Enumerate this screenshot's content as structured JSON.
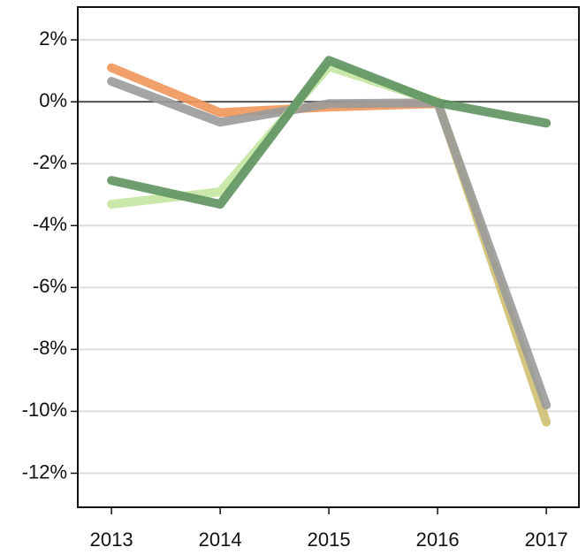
{
  "chart_data": {
    "type": "line",
    "x": [
      2013,
      2014,
      2015,
      2016,
      2017
    ],
    "xlim": [
      2012.69,
      2017.3
    ],
    "xticks": [
      2013,
      2014,
      2015,
      2016,
      2017
    ],
    "ylim": [
      -13.1,
      3.06
    ],
    "yticks": [
      {
        "value": 2,
        "label": "2%"
      },
      {
        "value": 0,
        "label": "0%"
      },
      {
        "value": -2,
        "label": "-2%"
      },
      {
        "value": -4,
        "label": "-4%"
      },
      {
        "value": -6,
        "label": "-6%"
      },
      {
        "value": -8,
        "label": "-8%"
      },
      {
        "value": -10,
        "label": "-10%"
      },
      {
        "value": -12,
        "label": "-12%"
      }
    ],
    "grid": true,
    "zero_line": true,
    "series": [
      {
        "color": "#f0965a",
        "values": [
          1.1,
          -0.35,
          -0.17,
          -0.06,
          null
        ]
      },
      {
        "color": "#cfc070",
        "values": [
          null,
          null,
          null,
          0,
          -10.35
        ]
      },
      {
        "color": "#9a9a9a",
        "values": [
          0.66,
          -0.66,
          -0.06,
          -0.03,
          -9.8
        ]
      },
      {
        "color": "#c4e6a0",
        "values": [
          -3.31,
          -2.91,
          1.14,
          0,
          null
        ]
      },
      {
        "color": "#5e9460",
        "values": [
          -2.54,
          -3.31,
          1.34,
          -0.03,
          -0.69
        ]
      }
    ]
  }
}
